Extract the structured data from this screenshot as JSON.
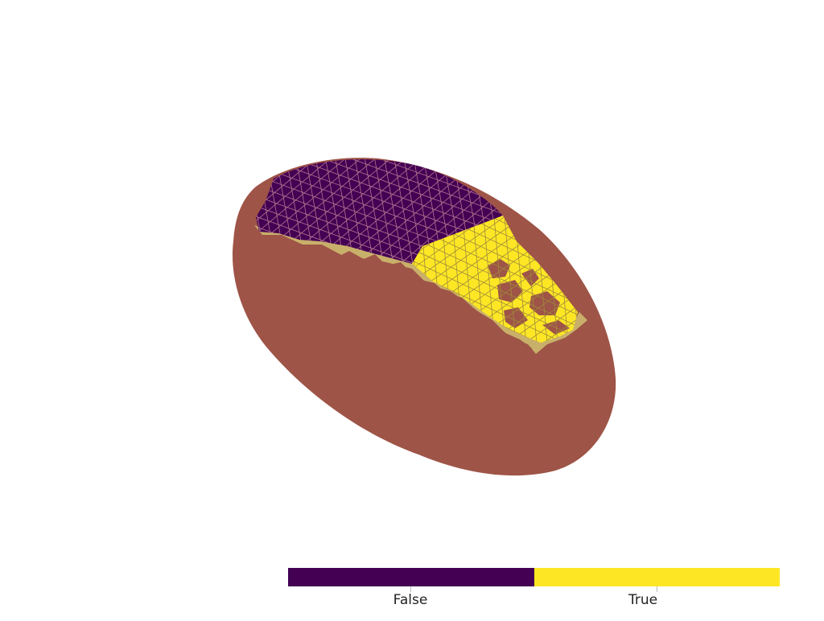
{
  "render": {
    "colors": {
      "background": "#ffffff",
      "shell": "#9e5447",
      "rim": "#c9b06a",
      "false": "#440154",
      "true": "#fde725",
      "wire": "#b5748f"
    }
  },
  "scalar_bar": {
    "labels": [
      "False",
      "True"
    ],
    "colors": [
      "#440154",
      "#fde725"
    ]
  }
}
